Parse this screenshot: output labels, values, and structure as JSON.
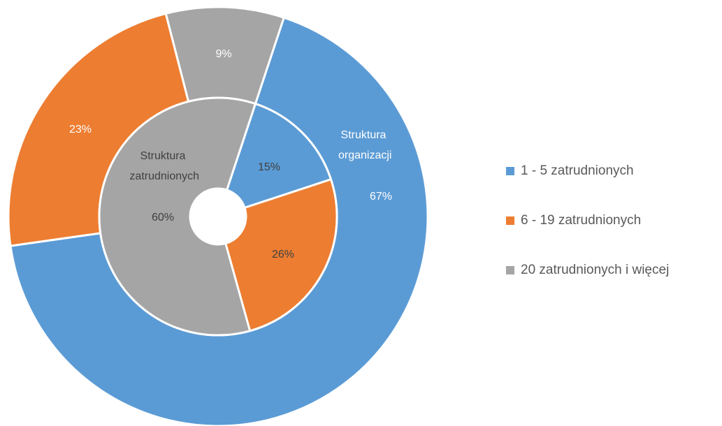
{
  "chart_data": {
    "type": "donut",
    "categories": [
      "1 - 5 zatrudnionych",
      "6 - 19 zatrudnionych",
      "20 zatrudnionych i więcej"
    ],
    "colors": [
      "#5b9bd5",
      "#ed7d31",
      "#a5a5a5"
    ],
    "legend": "right",
    "series": [
      {
        "name": "Struktura organizacji",
        "values": [
          67,
          23,
          9
        ],
        "value_labels": [
          "67%",
          "23%",
          "9%"
        ]
      },
      {
        "name": "Struktura zatrudnionych",
        "values": [
          15,
          26,
          60
        ],
        "value_labels": [
          "15%",
          "26%",
          "60%"
        ]
      }
    ]
  }
}
